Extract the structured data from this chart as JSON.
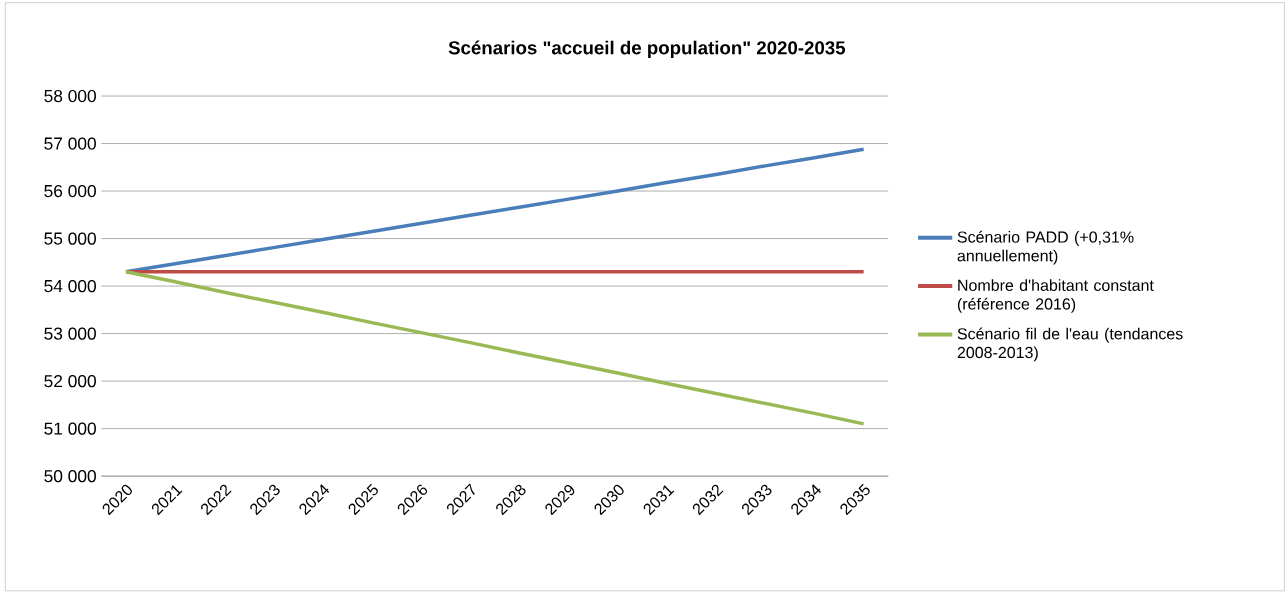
{
  "chart_data": {
    "type": "line",
    "title": "Scénarios \"accueil de population\" 2020-2035",
    "categories": [
      "2020",
      "2021",
      "2022",
      "2023",
      "2024",
      "2025",
      "2026",
      "2027",
      "2028",
      "2029",
      "2030",
      "2031",
      "2032",
      "2033",
      "2034",
      "2035"
    ],
    "series": [
      {
        "name": "Scénario PADD (+0,31% annuellement)",
        "color": "#4a7ebb",
        "values": [
          54300,
          54470,
          54640,
          54810,
          54980,
          55150,
          55320,
          55490,
          55660,
          55830,
          56000,
          56180,
          56350,
          56530,
          56700,
          56880
        ]
      },
      {
        "name": "Nombre d'habitant constant (référence 2016)",
        "color": "#be4b48",
        "values": [
          54300,
          54300,
          54300,
          54300,
          54300,
          54300,
          54300,
          54300,
          54300,
          54300,
          54300,
          54300,
          54300,
          54300,
          54300,
          54300
        ]
      },
      {
        "name": "Scénario fil de l'eau (tendances 2008-2013)",
        "color": "#98b954",
        "values": [
          54300,
          54090,
          53870,
          53660,
          53450,
          53230,
          53020,
          52810,
          52590,
          52380,
          52170,
          51950,
          51740,
          51530,
          51320,
          51100
        ]
      }
    ],
    "ylim": [
      50000,
      58000
    ],
    "yticks": [
      {
        "value": 50000,
        "label": "50 000"
      },
      {
        "value": 51000,
        "label": "51 000"
      },
      {
        "value": 52000,
        "label": "52 000"
      },
      {
        "value": 53000,
        "label": "53 000"
      },
      {
        "value": 54000,
        "label": "54 000"
      },
      {
        "value": 55000,
        "label": "55 000"
      },
      {
        "value": 56000,
        "label": "56 000"
      },
      {
        "value": 57000,
        "label": "57 000"
      },
      {
        "value": 58000,
        "label": "58 000"
      }
    ],
    "grid": "y",
    "legend": "right",
    "marker": "none",
    "line_style": "solid"
  }
}
